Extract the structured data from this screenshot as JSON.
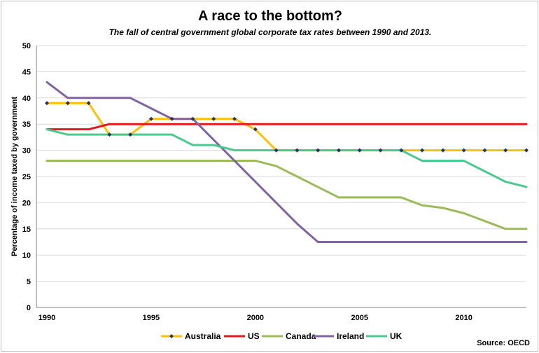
{
  "chart_data": {
    "type": "line",
    "title": "A race to the bottom?",
    "subtitle": "The fall of central government global corporate tax rates between 1990 and 2013.",
    "ylabel": "Percentage of income taxed by government",
    "xlabel": "",
    "xlim": [
      1990,
      2013
    ],
    "ylim": [
      0,
      50
    ],
    "yticks": [
      0,
      5,
      10,
      15,
      20,
      25,
      30,
      35,
      40,
      45,
      50
    ],
    "xticks": [
      1990,
      1995,
      2000,
      2005,
      2010
    ],
    "grid": "horizontal",
    "legend_position": "bottom",
    "source": "Source: OECD",
    "x": [
      1990,
      1991,
      1992,
      1993,
      1994,
      1995,
      1996,
      1997,
      1998,
      1999,
      2000,
      2001,
      2002,
      2003,
      2004,
      2005,
      2006,
      2007,
      2008,
      2009,
      2010,
      2011,
      2012,
      2013
    ],
    "series": [
      {
        "name": "Australia",
        "color": "#FFC000",
        "marker": "diamond",
        "marker_color": "#1F3864",
        "values": [
          39,
          39,
          39,
          33,
          33,
          36,
          36,
          36,
          36,
          36,
          34,
          30,
          30,
          30,
          30,
          30,
          30,
          30,
          30,
          30,
          30,
          30,
          30,
          30
        ]
      },
      {
        "name": "US",
        "color": "#E31A1C",
        "values": [
          34,
          34,
          34,
          35,
          35,
          35,
          35,
          35,
          35,
          35,
          35,
          35,
          35,
          35,
          35,
          35,
          35,
          35,
          35,
          35,
          35,
          35,
          35,
          35
        ]
      },
      {
        "name": "Canada",
        "color": "#9BBB59",
        "values": [
          28,
          28,
          28,
          28,
          28,
          28,
          28,
          28,
          28,
          28,
          28,
          27,
          25,
          23,
          21,
          21,
          21,
          21,
          19.5,
          19,
          18,
          16.5,
          15,
          15
        ]
      },
      {
        "name": "Ireland",
        "color": "#8064A2",
        "values": [
          43,
          40,
          40,
          40,
          40,
          38,
          36,
          36,
          32,
          28,
          24,
          20,
          16,
          12.5,
          12.5,
          12.5,
          12.5,
          12.5,
          12.5,
          12.5,
          12.5,
          12.5,
          12.5,
          12.5
        ]
      },
      {
        "name": "UK",
        "color": "#4BC98E",
        "values": [
          34,
          33,
          33,
          33,
          33,
          33,
          33,
          31,
          31,
          30,
          30,
          30,
          30,
          30,
          30,
          30,
          30,
          30,
          28,
          28,
          28,
          26,
          24,
          23
        ]
      }
    ]
  }
}
